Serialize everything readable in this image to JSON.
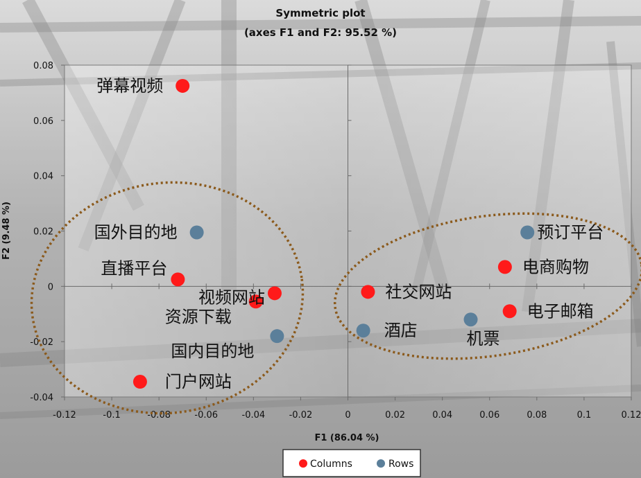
{
  "chart_data": {
    "type": "scatter",
    "title": "Symmetric plot",
    "subtitle": "(axes F1 and F2: 95.52 %)",
    "xlabel": "F1 (86.04 %)",
    "ylabel": "F2 (9.48 %)",
    "xlim": [
      -0.12,
      0.12
    ],
    "ylim": [
      -0.04,
      0.08
    ],
    "xticks": [
      "-0.12",
      "-0.1",
      "-0.08",
      "-0.06",
      "-0.04",
      "-0.02",
      "0",
      "0.02",
      "0.04",
      "0.06",
      "0.08",
      "0.1",
      "0.12"
    ],
    "yticks": [
      "-0.04",
      "-0.02",
      "0",
      "0.02",
      "0.04",
      "0.06",
      "0.08"
    ],
    "legend_position": "bottom",
    "colors": {
      "Columns": "#ff1a1a",
      "Rows": "#5b7f9a"
    },
    "series": [
      {
        "name": "Columns",
        "points": [
          {
            "label": "弹幕视频",
            "x": -0.07,
            "y": 0.0725
          },
          {
            "label": "直播平台",
            "x": -0.072,
            "y": 0.0025
          },
          {
            "label": "视频网站",
            "x": -0.031,
            "y": -0.0025
          },
          {
            "label": "资源下载",
            "x": -0.039,
            "y": -0.0055
          },
          {
            "label": "门户网站",
            "x": -0.088,
            "y": -0.0345
          },
          {
            "label": "社交网站",
            "x": 0.0085,
            "y": -0.002
          },
          {
            "label": "电商购物",
            "x": 0.0665,
            "y": 0.007
          },
          {
            "label": "电子邮箱",
            "x": 0.0685,
            "y": -0.009
          }
        ]
      },
      {
        "name": "Rows",
        "points": [
          {
            "label": "国外目的地",
            "x": -0.064,
            "y": 0.0195
          },
          {
            "label": "国内目的地",
            "x": -0.03,
            "y": -0.018
          },
          {
            "label": "预订平台",
            "x": 0.076,
            "y": 0.0195
          },
          {
            "label": "酒店",
            "x": 0.0065,
            "y": -0.016
          },
          {
            "label": "机票",
            "x": 0.052,
            "y": -0.012
          }
        ]
      }
    ]
  }
}
